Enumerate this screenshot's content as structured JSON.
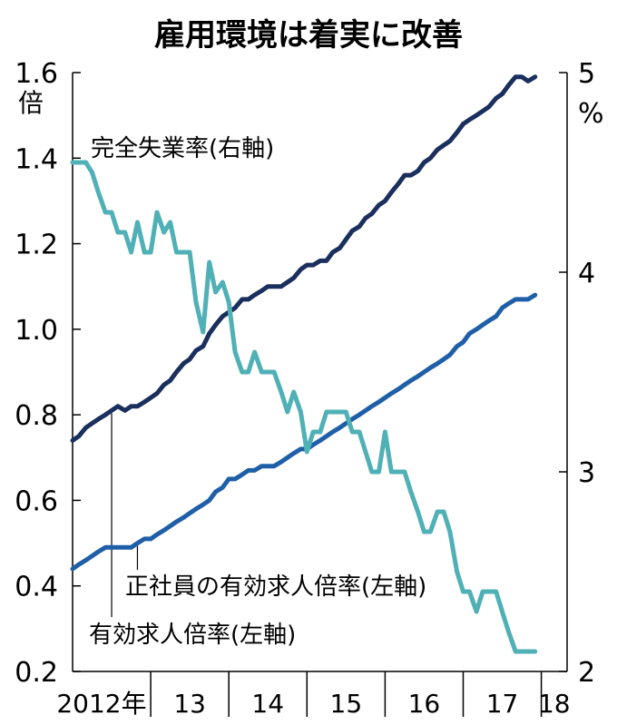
{
  "chart_data": {
    "type": "line",
    "title": "雇用環境は着実に改善",
    "left_axis": {
      "unit": "倍",
      "ticks": [
        "0.2",
        "0.4",
        "0.6",
        "0.8",
        "1.0",
        "1.2",
        "1.4",
        "1.6"
      ],
      "ylim": [
        0.2,
        1.6
      ]
    },
    "right_axis": {
      "unit": "%",
      "ticks": [
        "2",
        "3",
        "4",
        "5"
      ],
      "ylim": [
        2,
        5
      ]
    },
    "x_axis": {
      "labels": [
        "2012年",
        "13",
        "14",
        "15",
        "16",
        "17",
        "18"
      ],
      "range": [
        2012.0,
        2018.33
      ]
    },
    "series": [
      {
        "name": "有効求人倍率(左軸)",
        "axis": "left",
        "color": "#1a2f5e",
        "points": [
          [
            2012.0,
            0.74
          ],
          [
            2012.08,
            0.75
          ],
          [
            2012.17,
            0.77
          ],
          [
            2012.25,
            0.78
          ],
          [
            2012.33,
            0.79
          ],
          [
            2012.42,
            0.8
          ],
          [
            2012.5,
            0.81
          ],
          [
            2012.58,
            0.82
          ],
          [
            2012.67,
            0.81
          ],
          [
            2012.75,
            0.82
          ],
          [
            2012.83,
            0.82
          ],
          [
            2012.92,
            0.83
          ],
          [
            2013.0,
            0.84
          ],
          [
            2013.08,
            0.85
          ],
          [
            2013.17,
            0.87
          ],
          [
            2013.25,
            0.88
          ],
          [
            2013.33,
            0.9
          ],
          [
            2013.42,
            0.92
          ],
          [
            2013.5,
            0.93
          ],
          [
            2013.58,
            0.95
          ],
          [
            2013.67,
            0.96
          ],
          [
            2013.75,
            0.99
          ],
          [
            2013.83,
            1.01
          ],
          [
            2013.92,
            1.03
          ],
          [
            2014.0,
            1.04
          ],
          [
            2014.08,
            1.05
          ],
          [
            2014.17,
            1.07
          ],
          [
            2014.25,
            1.07
          ],
          [
            2014.33,
            1.08
          ],
          [
            2014.42,
            1.09
          ],
          [
            2014.5,
            1.1
          ],
          [
            2014.58,
            1.1
          ],
          [
            2014.67,
            1.1
          ],
          [
            2014.75,
            1.11
          ],
          [
            2014.83,
            1.12
          ],
          [
            2014.92,
            1.14
          ],
          [
            2015.0,
            1.15
          ],
          [
            2015.08,
            1.15
          ],
          [
            2015.17,
            1.16
          ],
          [
            2015.25,
            1.16
          ],
          [
            2015.33,
            1.18
          ],
          [
            2015.42,
            1.19
          ],
          [
            2015.5,
            1.21
          ],
          [
            2015.58,
            1.23
          ],
          [
            2015.67,
            1.24
          ],
          [
            2015.75,
            1.26
          ],
          [
            2015.83,
            1.27
          ],
          [
            2015.92,
            1.29
          ],
          [
            2016.0,
            1.3
          ],
          [
            2016.08,
            1.32
          ],
          [
            2016.17,
            1.34
          ],
          [
            2016.25,
            1.36
          ],
          [
            2016.33,
            1.36
          ],
          [
            2016.42,
            1.37
          ],
          [
            2016.5,
            1.39
          ],
          [
            2016.58,
            1.4
          ],
          [
            2016.67,
            1.42
          ],
          [
            2016.75,
            1.43
          ],
          [
            2016.83,
            1.44
          ],
          [
            2016.92,
            1.46
          ],
          [
            2017.0,
            1.48
          ],
          [
            2017.08,
            1.49
          ],
          [
            2017.17,
            1.5
          ],
          [
            2017.25,
            1.51
          ],
          [
            2017.33,
            1.52
          ],
          [
            2017.42,
            1.54
          ],
          [
            2017.5,
            1.55
          ],
          [
            2017.58,
            1.57
          ],
          [
            2017.67,
            1.59
          ],
          [
            2017.75,
            1.59
          ],
          [
            2017.83,
            1.58
          ],
          [
            2017.92,
            1.59
          ]
        ]
      },
      {
        "name": "正社員の有効求人倍率(左軸)",
        "axis": "left",
        "color": "#1f5fa8",
        "points": [
          [
            2012.0,
            0.44
          ],
          [
            2012.08,
            0.45
          ],
          [
            2012.17,
            0.46
          ],
          [
            2012.25,
            0.47
          ],
          [
            2012.33,
            0.48
          ],
          [
            2012.42,
            0.49
          ],
          [
            2012.5,
            0.49
          ],
          [
            2012.58,
            0.49
          ],
          [
            2012.67,
            0.49
          ],
          [
            2012.75,
            0.49
          ],
          [
            2012.83,
            0.5
          ],
          [
            2012.92,
            0.51
          ],
          [
            2013.0,
            0.51
          ],
          [
            2013.08,
            0.52
          ],
          [
            2013.17,
            0.53
          ],
          [
            2013.25,
            0.54
          ],
          [
            2013.33,
            0.55
          ],
          [
            2013.42,
            0.56
          ],
          [
            2013.5,
            0.57
          ],
          [
            2013.58,
            0.58
          ],
          [
            2013.67,
            0.59
          ],
          [
            2013.75,
            0.6
          ],
          [
            2013.83,
            0.62
          ],
          [
            2013.92,
            0.63
          ],
          [
            2014.0,
            0.65
          ],
          [
            2014.08,
            0.65
          ],
          [
            2014.17,
            0.66
          ],
          [
            2014.25,
            0.67
          ],
          [
            2014.33,
            0.67
          ],
          [
            2014.42,
            0.68
          ],
          [
            2014.5,
            0.68
          ],
          [
            2014.58,
            0.68
          ],
          [
            2014.67,
            0.69
          ],
          [
            2014.75,
            0.7
          ],
          [
            2014.83,
            0.71
          ],
          [
            2014.92,
            0.72
          ],
          [
            2015.0,
            0.72
          ],
          [
            2015.08,
            0.73
          ],
          [
            2015.17,
            0.74
          ],
          [
            2015.25,
            0.75
          ],
          [
            2015.33,
            0.76
          ],
          [
            2015.42,
            0.77
          ],
          [
            2015.5,
            0.78
          ],
          [
            2015.58,
            0.79
          ],
          [
            2015.67,
            0.8
          ],
          [
            2015.75,
            0.81
          ],
          [
            2015.83,
            0.82
          ],
          [
            2015.92,
            0.83
          ],
          [
            2016.0,
            0.84
          ],
          [
            2016.08,
            0.85
          ],
          [
            2016.17,
            0.86
          ],
          [
            2016.25,
            0.87
          ],
          [
            2016.33,
            0.88
          ],
          [
            2016.42,
            0.89
          ],
          [
            2016.5,
            0.9
          ],
          [
            2016.58,
            0.91
          ],
          [
            2016.67,
            0.92
          ],
          [
            2016.75,
            0.93
          ],
          [
            2016.83,
            0.94
          ],
          [
            2016.92,
            0.96
          ],
          [
            2017.0,
            0.97
          ],
          [
            2017.08,
            0.99
          ],
          [
            2017.17,
            1.0
          ],
          [
            2017.25,
            1.01
          ],
          [
            2017.33,
            1.02
          ],
          [
            2017.42,
            1.03
          ],
          [
            2017.5,
            1.05
          ],
          [
            2017.58,
            1.06
          ],
          [
            2017.67,
            1.07
          ],
          [
            2017.75,
            1.07
          ],
          [
            2017.83,
            1.07
          ],
          [
            2017.92,
            1.08
          ]
        ]
      },
      {
        "name": "完全失業率(右軸)",
        "axis": "right",
        "color": "#4fb0b6",
        "points": [
          [
            2012.0,
            4.55
          ],
          [
            2012.08,
            4.55
          ],
          [
            2012.17,
            4.55
          ],
          [
            2012.25,
            4.5
          ],
          [
            2012.33,
            4.4
          ],
          [
            2012.42,
            4.3
          ],
          [
            2012.5,
            4.3
          ],
          [
            2012.58,
            4.2
          ],
          [
            2012.67,
            4.2
          ],
          [
            2012.75,
            4.1
          ],
          [
            2012.83,
            4.25
          ],
          [
            2012.92,
            4.1
          ],
          [
            2013.0,
            4.1
          ],
          [
            2013.08,
            4.3
          ],
          [
            2013.17,
            4.2
          ],
          [
            2013.25,
            4.25
          ],
          [
            2013.33,
            4.1
          ],
          [
            2013.42,
            4.1
          ],
          [
            2013.5,
            4.1
          ],
          [
            2013.58,
            3.85
          ],
          [
            2013.67,
            3.7
          ],
          [
            2013.75,
            4.05
          ],
          [
            2013.83,
            3.9
          ],
          [
            2013.92,
            3.95
          ],
          [
            2014.0,
            3.85
          ],
          [
            2014.08,
            3.6
          ],
          [
            2014.17,
            3.5
          ],
          [
            2014.25,
            3.5
          ],
          [
            2014.33,
            3.6
          ],
          [
            2014.42,
            3.5
          ],
          [
            2014.5,
            3.5
          ],
          [
            2014.58,
            3.5
          ],
          [
            2014.67,
            3.4
          ],
          [
            2014.75,
            3.3
          ],
          [
            2014.83,
            3.4
          ],
          [
            2014.92,
            3.3
          ],
          [
            2015.0,
            3.1
          ],
          [
            2015.08,
            3.2
          ],
          [
            2015.17,
            3.2
          ],
          [
            2015.25,
            3.3
          ],
          [
            2015.33,
            3.3
          ],
          [
            2015.42,
            3.3
          ],
          [
            2015.5,
            3.3
          ],
          [
            2015.58,
            3.2
          ],
          [
            2015.67,
            3.2
          ],
          [
            2015.75,
            3.1
          ],
          [
            2015.83,
            3.0
          ],
          [
            2015.92,
            3.0
          ],
          [
            2016.0,
            3.2
          ],
          [
            2016.08,
            3.0
          ],
          [
            2016.17,
            3.0
          ],
          [
            2016.25,
            3.0
          ],
          [
            2016.33,
            2.9
          ],
          [
            2016.42,
            2.8
          ],
          [
            2016.5,
            2.7
          ],
          [
            2016.58,
            2.7
          ],
          [
            2016.67,
            2.8
          ],
          [
            2016.75,
            2.8
          ],
          [
            2016.83,
            2.7
          ],
          [
            2016.92,
            2.5
          ],
          [
            2017.0,
            2.4
          ],
          [
            2017.08,
            2.4
          ],
          [
            2017.17,
            2.3
          ],
          [
            2017.25,
            2.4
          ],
          [
            2017.33,
            2.4
          ],
          [
            2017.42,
            2.4
          ],
          [
            2017.5,
            2.3
          ],
          [
            2017.58,
            2.2
          ],
          [
            2017.67,
            2.1
          ],
          [
            2017.75,
            2.1
          ],
          [
            2017.83,
            2.1
          ],
          [
            2017.92,
            2.1
          ]
        ]
      }
    ],
    "annotations": [
      {
        "text": "完全失業率(右軸)",
        "series": 2
      },
      {
        "text": "正社員の有効求人倍率(左軸)",
        "series": 1
      },
      {
        "text": "有効求人倍率(左軸)",
        "series": 0
      }
    ]
  }
}
